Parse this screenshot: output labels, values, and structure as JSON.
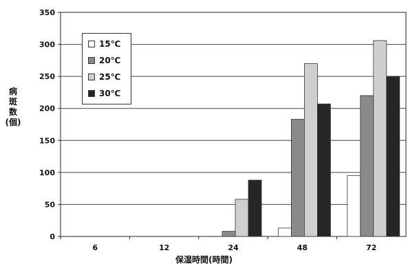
{
  "chart_data": {
    "type": "bar",
    "categories": [
      "6",
      "12",
      "24",
      "48",
      "72"
    ],
    "series": [
      {
        "name": "15℃",
        "color": "#ffffff",
        "values": [
          0,
          0,
          0,
          13,
          95
        ]
      },
      {
        "name": "20℃",
        "color": "#8a8a8a",
        "values": [
          0,
          0,
          8,
          183,
          220
        ]
      },
      {
        "name": "25℃",
        "color": "#cfcfcf",
        "values": [
          0,
          0,
          58,
          270,
          306
        ]
      },
      {
        "name": "30℃",
        "color": "#262626",
        "values": [
          0,
          0,
          88,
          207,
          250
        ]
      }
    ],
    "ylim": [
      0,
      350
    ],
    "yticks": [
      0,
      50,
      100,
      150,
      200,
      250,
      300,
      350
    ],
    "ylabel_chars": [
      "病",
      "斑",
      "数",
      "(個)"
    ],
    "xlabel": "保湿時間(時間)",
    "grid": true,
    "legend_position": "top-left"
  }
}
